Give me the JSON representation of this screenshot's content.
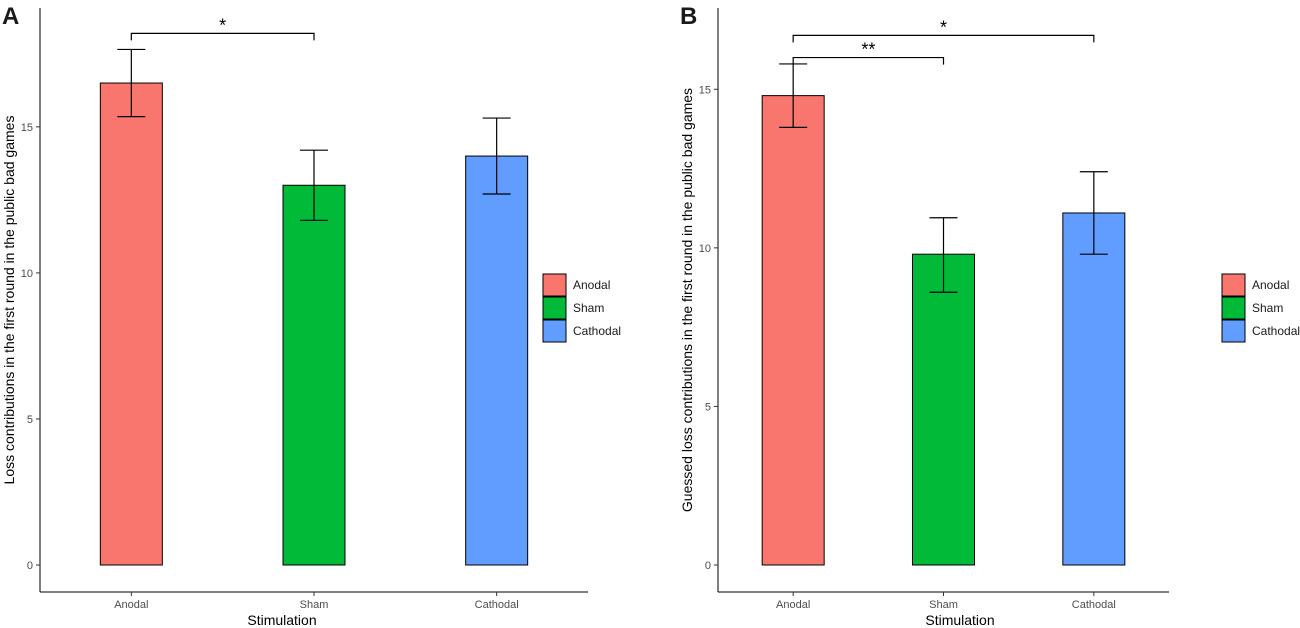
{
  "chart_data": [
    {
      "panel": "A",
      "type": "bar",
      "categories": [
        "Anodal",
        "Sham",
        "Cathodal"
      ],
      "values": [
        16.5,
        13.0,
        14.0
      ],
      "error_low": [
        15.35,
        11.8,
        12.7
      ],
      "error_high": [
        17.65,
        14.2,
        15.3
      ],
      "colors": [
        "#F8766D",
        "#00BA38",
        "#619CFF"
      ],
      "xlabel": "Stimulation",
      "ylabel": "Loss contributions  in the first round in the public bad games",
      "ylim": [
        0,
        19
      ],
      "yticks": [
        0,
        5,
        10,
        15
      ],
      "legend": [
        "Anodal",
        "Sham",
        "Cathodal"
      ],
      "legend_position": "right",
      "significance": [
        {
          "from": "Anodal",
          "to": "Sham",
          "label": "*",
          "y": 18.2
        }
      ]
    },
    {
      "panel": "B",
      "type": "bar",
      "categories": [
        "Anodal",
        "Sham",
        "Cathodal"
      ],
      "values": [
        14.8,
        9.8,
        11.1
      ],
      "error_low": [
        13.8,
        8.6,
        9.8
      ],
      "error_high": [
        15.8,
        10.95,
        12.4
      ],
      "colors": [
        "#F8766D",
        "#00BA38",
        "#619CFF"
      ],
      "xlabel": "Stimulation",
      "ylabel": "Guessed loss contributions  in the first round in the public bad games",
      "ylim": [
        0,
        17.5
      ],
      "yticks": [
        0,
        5,
        10,
        15
      ],
      "legend": [
        "Anodal",
        "Sham",
        "Cathodal"
      ],
      "legend_position": "right",
      "significance": [
        {
          "from": "Anodal",
          "to": "Cathodal",
          "label": "*",
          "y": 16.7
        },
        {
          "from": "Anodal",
          "to": "Sham",
          "label": "**",
          "y": 16.0
        }
      ]
    }
  ]
}
